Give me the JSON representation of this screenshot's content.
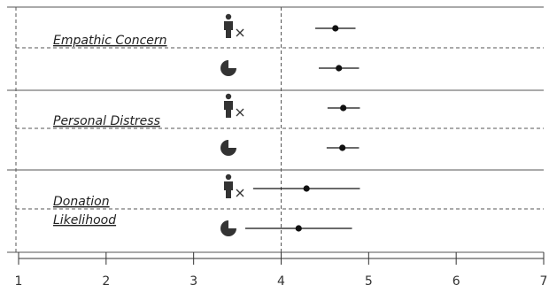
{
  "chart_data": {
    "type": "scatter",
    "xlim": [
      1,
      7
    ],
    "x_ticks": [
      "1",
      "2",
      "3",
      "4",
      "5",
      "6",
      "7"
    ],
    "reference_line_x": 4,
    "grid": false,
    "condition_icons": [
      "person-x-icon",
      "pie-chart-icon"
    ],
    "groups": [
      {
        "label": "Empathic Concern",
        "rows": [
          {
            "condition_icon": "person-x-icon",
            "mean": 4.62,
            "low": 4.39,
            "high": 4.85
          },
          {
            "condition_icon": "pie-chart-icon",
            "mean": 4.66,
            "low": 4.43,
            "high": 4.89
          }
        ]
      },
      {
        "label": "Personal Distress",
        "rows": [
          {
            "condition_icon": "person-x-icon",
            "mean": 4.71,
            "low": 4.53,
            "high": 4.9
          },
          {
            "condition_icon": "pie-chart-icon",
            "mean": 4.7,
            "low": 4.52,
            "high": 4.89
          }
        ]
      },
      {
        "label_lines": [
          "Donation",
          "Likelihood"
        ],
        "rows": [
          {
            "condition_icon": "person-x-icon",
            "mean": 4.29,
            "low": 3.68,
            "high": 4.9
          },
          {
            "condition_icon": "pie-chart-icon",
            "mean": 4.2,
            "low": 3.59,
            "high": 4.81
          }
        ]
      }
    ]
  }
}
